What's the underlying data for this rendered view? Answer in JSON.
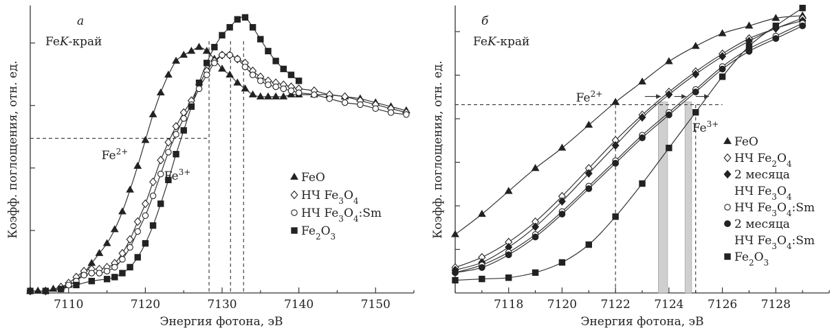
{
  "chart_data": [
    {
      "type": "line",
      "panel_label": "а",
      "title": "FeK-край",
      "xlabel": "Энергия фотона, эВ",
      "ylabel": "Коэфф. поглощения, отн. ед.",
      "xlim": [
        7105,
        7155
      ],
      "ylim": [
        0,
        1.45
      ],
      "x_ticks": [
        7110,
        7120,
        7130,
        7140,
        7150
      ],
      "legend_position": "right",
      "grid": false,
      "half_height": 0.78,
      "annotations": [
        "Fe2+",
        "Fe3+"
      ],
      "vlines_x": [
        7128.3,
        7131.1,
        7132.8
      ],
      "series": [
        {
          "name": "FeO",
          "marker": "filled-triangle",
          "x": [
            7105,
            7106,
            7107,
            7108,
            7109,
            7110,
            7111,
            7112,
            7113,
            7114,
            7115,
            7116,
            7117,
            7118,
            7119,
            7120,
            7121,
            7122,
            7123,
            7124,
            7125,
            7126,
            7127,
            7128,
            7129,
            7130,
            7131,
            7132,
            7133,
            7134,
            7135,
            7136,
            7137,
            7138,
            7139,
            7140,
            7142,
            7144,
            7146,
            7148,
            7150,
            7152,
            7154
          ],
          "y": [
            0.01,
            0.01,
            0.01,
            0.02,
            0.03,
            0.04,
            0.06,
            0.1,
            0.15,
            0.2,
            0.25,
            0.32,
            0.41,
            0.52,
            0.64,
            0.77,
            0.9,
            1.01,
            1.1,
            1.17,
            1.2,
            1.22,
            1.24,
            1.22,
            1.18,
            1.13,
            1.1,
            1.06,
            1.03,
            1.0,
            0.99,
            0.99,
            0.99,
            0.99,
            1.0,
            1.0,
            1.0,
            1.0,
            0.99,
            0.98,
            0.96,
            0.94,
            0.92
          ]
        },
        {
          "name": "НЧ Fe3O4",
          "marker": "open-diamond",
          "x": [
            7105,
            7107,
            7109,
            7110,
            7111,
            7112,
            7113,
            7114,
            7115,
            7116,
            7117,
            7118,
            7119,
            7120,
            7121,
            7122,
            7123,
            7124,
            7125,
            7126,
            7127,
            7128,
            7129,
            7130,
            7131,
            7132,
            7133,
            7134,
            7135,
            7136,
            7137,
            7138,
            7139,
            7140,
            7142,
            7144,
            7146,
            7148,
            7150,
            7152,
            7154
          ],
          "y": [
            0.01,
            0.01,
            0.03,
            0.05,
            0.08,
            0.11,
            0.12,
            0.12,
            0.13,
            0.15,
            0.2,
            0.27,
            0.36,
            0.45,
            0.56,
            0.67,
            0.76,
            0.84,
            0.91,
            0.97,
            1.05,
            1.12,
            1.17,
            1.2,
            1.2,
            1.18,
            1.16,
            1.12,
            1.09,
            1.07,
            1.06,
            1.05,
            1.04,
            1.03,
            1.02,
            1.0,
            0.99,
            0.97,
            0.95,
            0.93,
            0.91
          ]
        },
        {
          "name": "НЧ Fe3O4:Sm",
          "marker": "open-circle",
          "x": [
            7105,
            7107,
            7109,
            7110,
            7111,
            7112,
            7113,
            7114,
            7115,
            7116,
            7117,
            7118,
            7119,
            7120,
            7121,
            7122,
            7123,
            7124,
            7125,
            7126,
            7127,
            7128,
            7129,
            7130,
            7131,
            7132,
            7133,
            7134,
            7135,
            7136,
            7137,
            7138,
            7139,
            7140,
            7142,
            7144,
            7146,
            7148,
            7150,
            7152,
            7154
          ],
          "y": [
            0.01,
            0.01,
            0.02,
            0.04,
            0.06,
            0.09,
            0.1,
            0.1,
            0.11,
            0.13,
            0.17,
            0.23,
            0.31,
            0.39,
            0.49,
            0.6,
            0.71,
            0.8,
            0.88,
            0.95,
            1.03,
            1.1,
            1.16,
            1.2,
            1.2,
            1.18,
            1.14,
            1.1,
            1.07,
            1.05,
            1.04,
            1.03,
            1.02,
            1.01,
            1.0,
            0.98,
            0.96,
            0.95,
            0.93,
            0.91,
            0.9
          ]
        },
        {
          "name": "Fe2O3",
          "marker": "filled-square",
          "x": [
            7105,
            7107,
            7109,
            7111,
            7113,
            7115,
            7116,
            7117,
            7118,
            7119,
            7120,
            7121,
            7122,
            7123,
            7124,
            7125,
            7126,
            7127,
            7128,
            7129,
            7130,
            7131,
            7132,
            7133,
            7134,
            7135,
            7136,
            7137,
            7138,
            7139,
            7140
          ],
          "y": [
            0.01,
            0.01,
            0.02,
            0.04,
            0.06,
            0.07,
            0.08,
            0.1,
            0.13,
            0.18,
            0.25,
            0.34,
            0.45,
            0.57,
            0.7,
            0.82,
            0.94,
            1.06,
            1.16,
            1.24,
            1.3,
            1.34,
            1.38,
            1.39,
            1.34,
            1.28,
            1.22,
            1.17,
            1.13,
            1.1,
            1.07
          ]
        }
      ]
    },
    {
      "type": "line",
      "panel_label": "б",
      "title": "FeK-край",
      "xlabel": "Энергия фотона, эВ",
      "ylabel": "Коэфф. поглощения, отн. ед.",
      "xlim": [
        7116,
        7130
      ],
      "ylim": [
        0.07,
        1.2
      ],
      "x_ticks": [
        7118,
        7120,
        7122,
        7124,
        7126,
        7128
      ],
      "legend_position": "right",
      "grid": false,
      "half_height": 0.81,
      "annotations": [
        "Fe2+",
        "Fe3+"
      ],
      "vlines_x": [
        7122,
        7125
      ],
      "shaded_bands_x": [
        [
          7123.6,
          7123.95
        ],
        [
          7124.6,
          7124.85
        ]
      ],
      "series": [
        {
          "name": "FeO",
          "marker": "filled-triangle",
          "x": [
            7116,
            7117,
            7118,
            7119,
            7120,
            7121,
            7122,
            7123,
            7124,
            7125,
            7126,
            7127,
            7128,
            7129
          ],
          "y": [
            0.3,
            0.38,
            0.47,
            0.56,
            0.64,
            0.73,
            0.82,
            0.9,
            0.98,
            1.04,
            1.09,
            1.12,
            1.15,
            1.16
          ]
        },
        {
          "name": "НЧ Fe2O4",
          "marker": "open-diamond",
          "x": [
            7116,
            7117,
            7118,
            7119,
            7120,
            7121,
            7122,
            7123,
            7124,
            7125,
            7126,
            7127,
            7128,
            7129
          ],
          "y": [
            0.17,
            0.21,
            0.27,
            0.35,
            0.45,
            0.56,
            0.67,
            0.77,
            0.86,
            0.94,
            1.01,
            1.07,
            1.11,
            1.15
          ]
        },
        {
          "name": "2 месяца НЧ Fe3O4",
          "marker": "filled-diamond",
          "x": [
            7116,
            7117,
            7118,
            7119,
            7120,
            7121,
            7122,
            7123,
            7124,
            7125,
            7126,
            7127,
            7128,
            7129
          ],
          "y": [
            0.16,
            0.19,
            0.25,
            0.33,
            0.43,
            0.54,
            0.65,
            0.76,
            0.85,
            0.93,
            1.0,
            1.06,
            1.11,
            1.14
          ]
        },
        {
          "name": "НЧ Fe3O4:Sm",
          "marker": "open-circle",
          "x": [
            7116,
            7117,
            7118,
            7119,
            7120,
            7121,
            7122,
            7123,
            7124,
            7125,
            7126,
            7127,
            7128,
            7129
          ],
          "y": [
            0.15,
            0.18,
            0.23,
            0.3,
            0.39,
            0.49,
            0.59,
            0.69,
            0.78,
            0.87,
            0.96,
            1.03,
            1.08,
            1.13
          ]
        },
        {
          "name": "2 месяца НЧ Fe3O4:Sm",
          "marker": "filled-circle",
          "x": [
            7116,
            7117,
            7118,
            7119,
            7120,
            7121,
            7122,
            7123,
            7124,
            7125,
            7126,
            7127,
            7128,
            7129
          ],
          "y": [
            0.15,
            0.17,
            0.22,
            0.29,
            0.38,
            0.48,
            0.58,
            0.68,
            0.77,
            0.86,
            0.95,
            1.02,
            1.07,
            1.12
          ]
        },
        {
          "name": "Fe2O3",
          "marker": "filled-square",
          "x": [
            7116,
            7117,
            7118,
            7119,
            7120,
            7121,
            7122,
            7123,
            7124,
            7125,
            7126,
            7127,
            7128,
            7129
          ],
          "y": [
            0.12,
            0.125,
            0.13,
            0.15,
            0.19,
            0.26,
            0.37,
            0.5,
            0.64,
            0.78,
            0.92,
            1.04,
            1.12,
            1.19
          ]
        }
      ]
    }
  ]
}
